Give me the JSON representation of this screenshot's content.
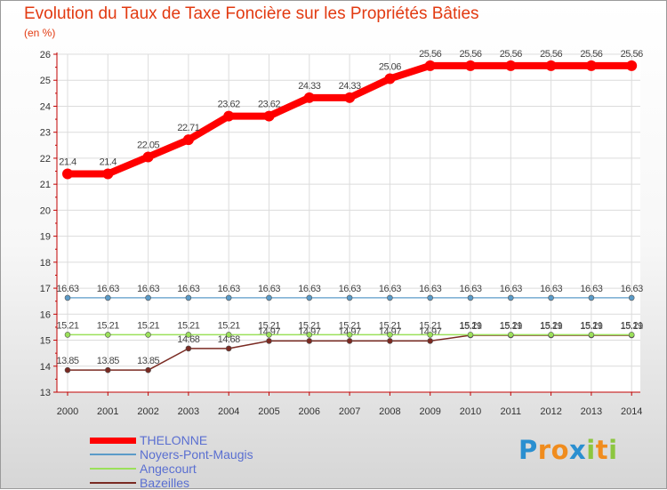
{
  "title": "Evolution du Taux de Taxe Foncière sur les Propriétés Bâties",
  "unit_label": "(en %)",
  "logo": {
    "text": "Proxiti",
    "letters": [
      "P",
      "r",
      "o",
      "x",
      "i",
      "t",
      "i"
    ],
    "colors": [
      "#2a8fd0",
      "#f08c1e",
      "#f08c1e",
      "#2a8fd0",
      "#8cc63f",
      "#f08c1e",
      "#8cc63f"
    ]
  },
  "chart_data": {
    "type": "line",
    "title": "Evolution du Taux de Taxe Foncière sur les Propriétés Bâties",
    "ylabel": "(en %)",
    "xlabel": "",
    "ylim": [
      13,
      26
    ],
    "grid": true,
    "x": [
      "2000",
      "2001",
      "2002",
      "2003",
      "2004",
      "2005",
      "2006",
      "2007",
      "2008",
      "2009",
      "2010",
      "2011",
      "2012",
      "2013",
      "2014"
    ],
    "y_ticks": [
      "13",
      "14",
      "15",
      "16",
      "17",
      "18",
      "19",
      "20",
      "21",
      "22",
      "23",
      "24",
      "25",
      "26"
    ],
    "series": [
      {
        "name": "THELONNE",
        "color": "#ff0000",
        "values": [
          21.4,
          21.4,
          22.05,
          22.71,
          23.62,
          23.62,
          24.33,
          24.33,
          25.06,
          25.56,
          25.56,
          25.56,
          25.56,
          25.56,
          25.56
        ],
        "labels": [
          "21.4",
          "21.4",
          "22.05",
          "22.71",
          "23.62",
          "23.62",
          "24.33",
          "24.33",
          "25.06",
          "25.56",
          "25.56",
          "25.56",
          "25.56",
          "25.56",
          "25.56"
        ]
      },
      {
        "name": "Noyers-Pont-Maugis",
        "color": "#5b9bc8",
        "values": [
          16.63,
          16.63,
          16.63,
          16.63,
          16.63,
          16.63,
          16.63,
          16.63,
          16.63,
          16.63,
          16.63,
          16.63,
          16.63,
          16.63,
          16.63
        ],
        "labels": [
          "16.63",
          "16.63",
          "16.63",
          "16.63",
          "16.63",
          "16.63",
          "16.63",
          "16.63",
          "16.63",
          "16.63",
          "16.63",
          "16.63",
          "16.63",
          "16.63",
          "16.63"
        ]
      },
      {
        "name": "Angecourt",
        "color": "#9be05a",
        "values": [
          15.21,
          15.21,
          15.21,
          15.21,
          15.21,
          15.21,
          15.21,
          15.21,
          15.21,
          15.21,
          15.21,
          15.21,
          15.21,
          15.21,
          15.21
        ],
        "labels": [
          "15.21",
          "15.21",
          "15.21",
          "15.21",
          "15.21",
          "15.21",
          "15.21",
          "15.21",
          "15.21",
          "15.21",
          "15.21",
          "15.21",
          "15.21",
          "15.21",
          "15.21"
        ]
      },
      {
        "name": "Bazeilles",
        "color": "#7a2a22",
        "values": [
          13.85,
          13.85,
          13.85,
          14.68,
          14.68,
          14.97,
          14.97,
          14.97,
          14.97,
          14.97,
          15.19,
          15.19,
          15.19,
          15.19,
          15.19
        ],
        "labels": [
          "13.85",
          "13.85",
          "13.85",
          "14.68",
          "14.68",
          "14.97",
          "14.97",
          "14.97",
          "14.97",
          "14.97",
          "15.19",
          "15.19",
          "15.19",
          "15.19",
          "15.19"
        ]
      }
    ],
    "legend_position": "bottom-left"
  }
}
